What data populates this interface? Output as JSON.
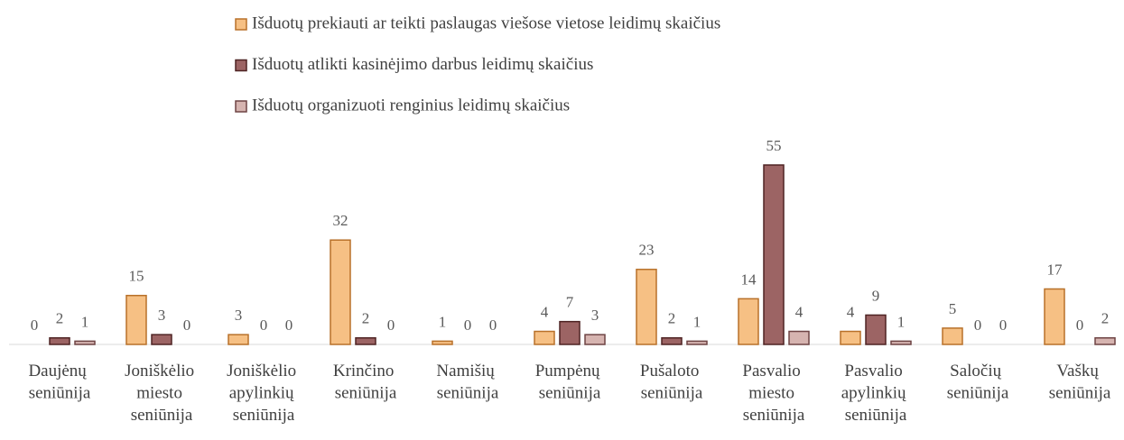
{
  "chart_data": {
    "type": "bar",
    "categories": [
      "Daujėnų seniūnija",
      "Joniškėlio miesto seniūnija",
      "Joniškėlio apylinkių seniūnija",
      "Krinčino seniūnija",
      "Namišių seniūnija",
      "Pumpėnų seniūnija",
      "Pušaloto seniūnija",
      "Pasvalio miesto seniūnija",
      "Pasvalio apylinkių seniūnija",
      "Saločių seniūnija",
      "Vaškų seniūnija"
    ],
    "series": [
      {
        "name": "Išduotų prekiauti ar teikti paslaugas viešose vietose leidimų skaičius",
        "color": "#f6c084",
        "stroke": "#b8712a",
        "values": [
          0,
          15,
          3,
          32,
          1,
          4,
          23,
          14,
          4,
          5,
          17
        ]
      },
      {
        "name": "Išduotų atlikti kasinėjimo darbus leidimų skaičius",
        "color": "#9c6464",
        "stroke": "#4e2323",
        "values": [
          2,
          3,
          0,
          2,
          0,
          7,
          2,
          55,
          9,
          0,
          0
        ]
      },
      {
        "name": "Išduotų organizuoti renginius leidimų skaičius",
        "color": "#d6b4b0",
        "stroke": "#6e4444",
        "values": [
          1,
          0,
          0,
          0,
          0,
          3,
          1,
          4,
          1,
          0,
          2
        ]
      }
    ]
  }
}
